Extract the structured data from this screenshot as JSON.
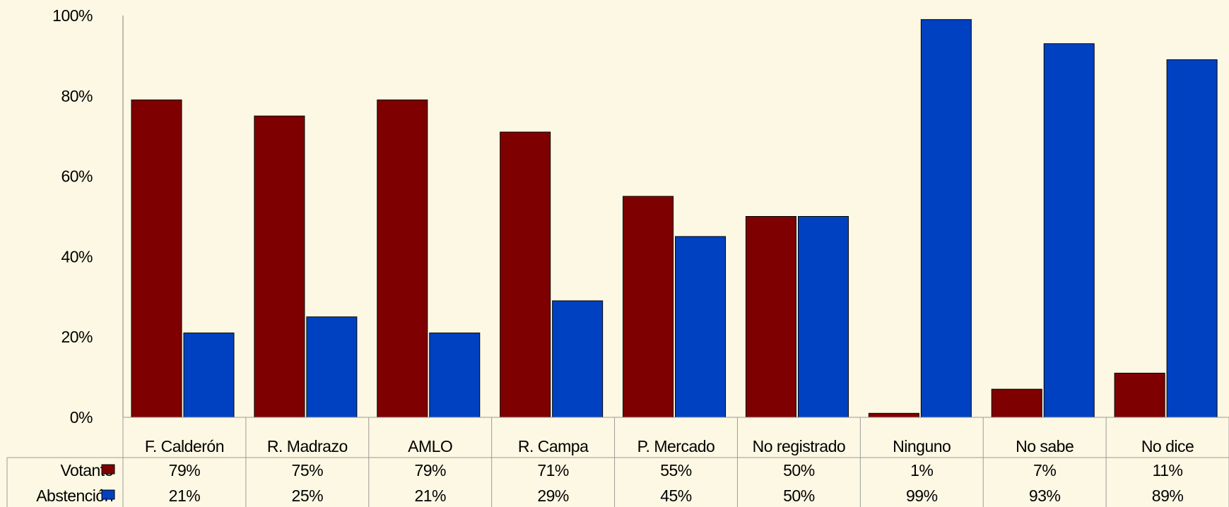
{
  "chart_data": {
    "type": "bar",
    "categories": [
      "F. Calderón",
      "R. Madrazo",
      "AMLO",
      "R. Campa",
      "P. Mercado",
      "No registrado",
      "Ninguno",
      "No sabe",
      "No dice"
    ],
    "series": [
      {
        "name": "Votante",
        "values": [
          79,
          75,
          79,
          71,
          55,
          50,
          1,
          7,
          11
        ],
        "labels": [
          "79%",
          "75%",
          "79%",
          "71%",
          "55%",
          "50%",
          "1%",
          "7%",
          "11%"
        ],
        "color": "#7F0000"
      },
      {
        "name": "Abstención",
        "values": [
          21,
          25,
          21,
          29,
          45,
          50,
          99,
          93,
          89
        ],
        "labels": [
          "21%",
          "25%",
          "21%",
          "29%",
          "45%",
          "50%",
          "99%",
          "93%",
          "89%"
        ],
        "color": "#0041C2"
      }
    ],
    "ylim": [
      0,
      100
    ],
    "yticks": [
      "0%",
      "20%",
      "40%",
      "60%",
      "80%",
      "100%"
    ],
    "grid": false,
    "legend": "data-table-left",
    "background": "#FDF8E3"
  }
}
